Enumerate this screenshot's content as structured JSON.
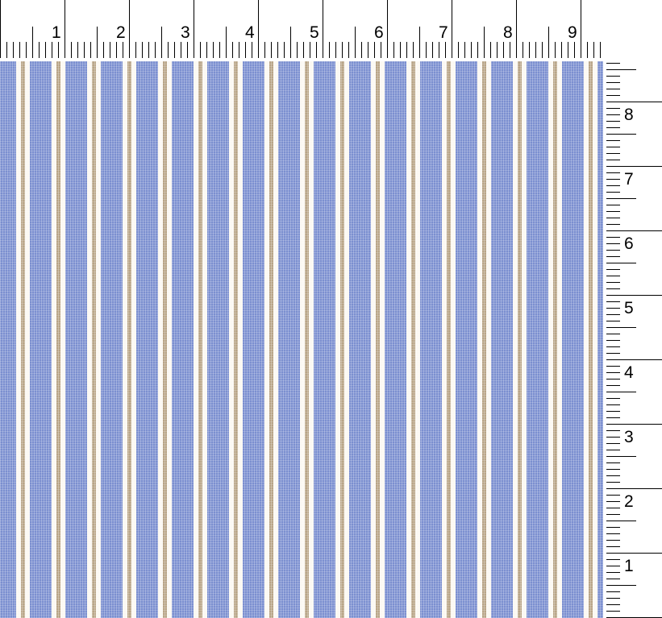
{
  "swatch": {
    "colors": {
      "ground": "#7b8fd0",
      "stripe": "#b8a486",
      "gap": "#fbf8f2"
    }
  },
  "top_ruler": {
    "labels": [
      "1",
      "2",
      "3",
      "4",
      "5",
      "6",
      "7",
      "8",
      "9"
    ]
  },
  "right_ruler": {
    "labels": [
      "1",
      "2",
      "3",
      "4",
      "5",
      "6",
      "7",
      "8"
    ]
  }
}
